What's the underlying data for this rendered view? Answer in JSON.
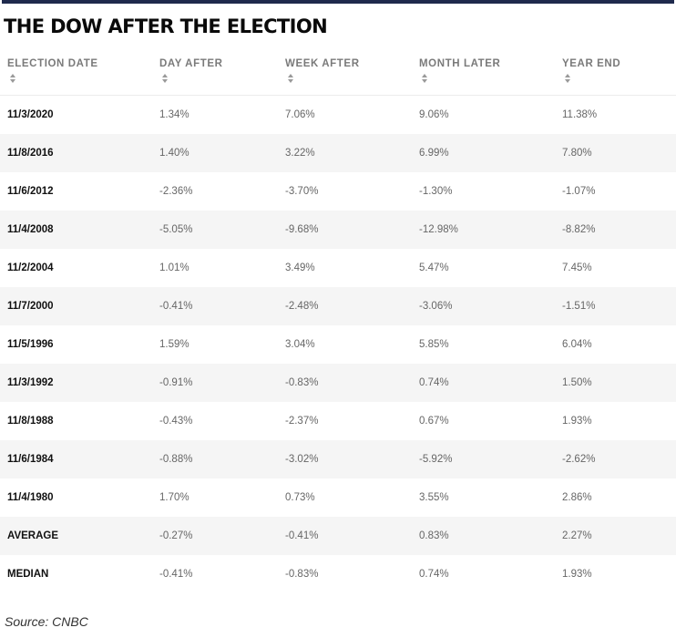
{
  "title": "THE DOW AFTER THE ELECTION",
  "source": "Source: CNBC",
  "colors": {
    "top_rule": "#1f2a4d",
    "alt_row": "#f5f5f5",
    "header_text": "#7a7a7a"
  },
  "chart_data": {
    "type": "table",
    "title": "THE DOW AFTER THE ELECTION",
    "columns": [
      "ELECTION DATE",
      "DAY AFTER",
      "WEEK AFTER",
      "MONTH LATER",
      "YEAR END"
    ],
    "rows": [
      [
        "11/3/2020",
        "1.34%",
        "7.06%",
        "9.06%",
        "11.38%"
      ],
      [
        "11/8/2016",
        "1.40%",
        "3.22%",
        "6.99%",
        "7.80%"
      ],
      [
        "11/6/2012",
        "-2.36%",
        "-3.70%",
        "-1.30%",
        "-1.07%"
      ],
      [
        "11/4/2008",
        "-5.05%",
        "-9.68%",
        "-12.98%",
        "-8.82%"
      ],
      [
        "11/2/2004",
        "1.01%",
        "3.49%",
        "5.47%",
        "7.45%"
      ],
      [
        "11/7/2000",
        "-0.41%",
        "-2.48%",
        "-3.06%",
        "-1.51%"
      ],
      [
        "11/5/1996",
        "1.59%",
        "3.04%",
        "5.85%",
        "6.04%"
      ],
      [
        "11/3/1992",
        "-0.91%",
        "-0.83%",
        "0.74%",
        "1.50%"
      ],
      [
        "11/8/1988",
        "-0.43%",
        "-2.37%",
        "0.67%",
        "1.93%"
      ],
      [
        "11/6/1984",
        "-0.88%",
        "-3.02%",
        "-5.92%",
        "-2.62%"
      ],
      [
        "11/4/1980",
        "1.70%",
        "0.73%",
        "3.55%",
        "2.86%"
      ],
      [
        "AVERAGE",
        "-0.27%",
        "-0.41%",
        "0.83%",
        "2.27%"
      ],
      [
        "MEDIAN",
        "-0.41%",
        "-0.83%",
        "0.74%",
        "1.93%"
      ]
    ]
  }
}
